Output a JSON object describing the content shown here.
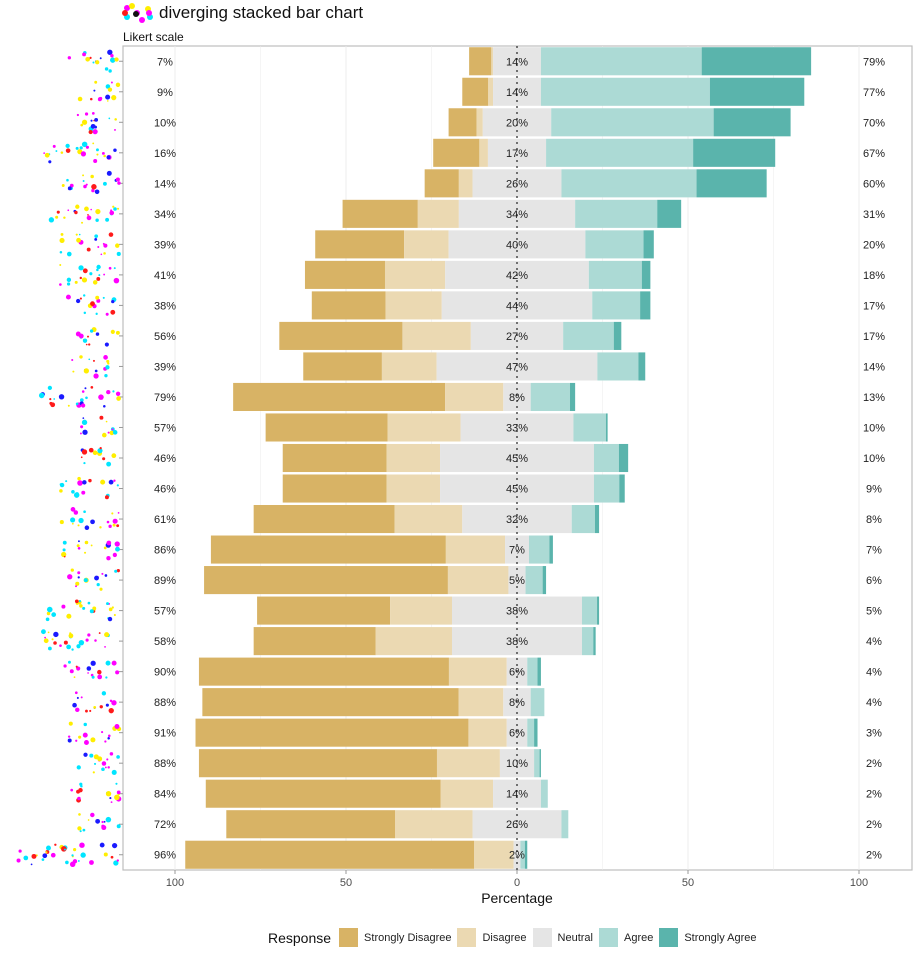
{
  "header": {
    "title": "diverging stacked bar chart",
    "subtitle": "Likert scale"
  },
  "chart_data": {
    "type": "bar",
    "orientation": "horizontal",
    "stacked": true,
    "diverging": true,
    "title": "diverging stacked bar chart",
    "subtitle": "Likert scale",
    "xlabel": "Percentage",
    "ylabel": "",
    "xlim": [
      -115,
      115
    ],
    "xticks": [
      -100,
      -50,
      0,
      50,
      100
    ],
    "xtick_labels": [
      "100",
      "50",
      "0",
      "50",
      "100"
    ],
    "grid": true,
    "legend": {
      "title": "Response",
      "placement": "bottom",
      "entries": [
        "Strongly Disagree",
        "Disagree",
        "Neutral",
        "Agree",
        "Strongly Agree"
      ]
    },
    "colors": {
      "Strongly Disagree": "#d8b365",
      "Disagree": "#ebd9b2",
      "Neutral": "#e5e5e5",
      "Agree": "#acdad5",
      "Strongly Agree": "#5ab4ac"
    },
    "categories_note": "Item labels rendered as illegible dot glyphs",
    "series_order": [
      "Strongly Disagree",
      "Disagree",
      "Neutral",
      "Agree",
      "Strongly Agree"
    ],
    "rows": [
      {
        "values": [
          6.5,
          0.5,
          14,
          47,
          32
        ],
        "left_label": "7%",
        "neutral_label": "14%",
        "right_label": "79%"
      },
      {
        "values": [
          7.6,
          1.4,
          14,
          49.4,
          27.6
        ],
        "left_label": "9%",
        "neutral_label": "14%",
        "right_label": "77%"
      },
      {
        "values": [
          8.2,
          1.8,
          20,
          47.5,
          22.5
        ],
        "left_label": "10%",
        "neutral_label": "20%",
        "right_label": "70%"
      },
      {
        "values": [
          13.5,
          2.5,
          17,
          43,
          24
        ],
        "left_label": "16%",
        "neutral_label": "17%",
        "right_label": "67%"
      },
      {
        "values": [
          10,
          4,
          26,
          39.5,
          20.5
        ],
        "left_label": "14%",
        "neutral_label": "26%",
        "right_label": "60%"
      },
      {
        "values": [
          22,
          12,
          34,
          24,
          7
        ],
        "left_label": "34%",
        "neutral_label": "34%",
        "right_label": "31%"
      },
      {
        "values": [
          26,
          13,
          40,
          17,
          3
        ],
        "left_label": "39%",
        "neutral_label": "40%",
        "right_label": "20%"
      },
      {
        "values": [
          23.4,
          17.6,
          42,
          15.5,
          2.5
        ],
        "left_label": "41%",
        "neutral_label": "42%",
        "right_label": "18%"
      },
      {
        "values": [
          21.6,
          16.4,
          44,
          14,
          3
        ],
        "left_label": "38%",
        "neutral_label": "44%",
        "right_label": "17%"
      },
      {
        "values": [
          36,
          20,
          27,
          14.8,
          2.2
        ],
        "left_label": "56%",
        "neutral_label": "27%",
        "right_label": "17%"
      },
      {
        "values": [
          23,
          16,
          47,
          12,
          2
        ],
        "left_label": "39%",
        "neutral_label": "47%",
        "right_label": "14%"
      },
      {
        "values": [
          62,
          17,
          8,
          11.5,
          1.5
        ],
        "left_label": "79%",
        "neutral_label": "8%",
        "right_label": "13%"
      },
      {
        "values": [
          35.7,
          21.3,
          33,
          9.5,
          0.5
        ],
        "left_label": "57%",
        "neutral_label": "33%",
        "right_label": "10%"
      },
      {
        "values": [
          30.4,
          15.6,
          45,
          7.3,
          2.7
        ],
        "left_label": "46%",
        "neutral_label": "45%",
        "right_label": "10%"
      },
      {
        "values": [
          30.4,
          15.6,
          45,
          7.4,
          1.6
        ],
        "left_label": "46%",
        "neutral_label": "45%",
        "right_label": "9%"
      },
      {
        "values": [
          41.2,
          19.8,
          32,
          6.8,
          1.2
        ],
        "left_label": "61%",
        "neutral_label": "32%",
        "right_label": "8%"
      },
      {
        "values": [
          68.7,
          17.3,
          7,
          6,
          1
        ],
        "left_label": "86%",
        "neutral_label": "7%",
        "right_label": "7%"
      },
      {
        "values": [
          71.3,
          17.7,
          5,
          5,
          1
        ],
        "left_label": "89%",
        "neutral_label": "5%",
        "right_label": "6%"
      },
      {
        "values": [
          38.9,
          18.1,
          38,
          4.4,
          0.6
        ],
        "left_label": "57%",
        "neutral_label": "38%",
        "right_label": "5%"
      },
      {
        "values": [
          35.7,
          22.3,
          38,
          3.3,
          0.7
        ],
        "left_label": "58%",
        "neutral_label": "38%",
        "right_label": "4%"
      },
      {
        "values": [
          73.1,
          16.9,
          6,
          3,
          1
        ],
        "left_label": "90%",
        "neutral_label": "6%",
        "right_label": "4%"
      },
      {
        "values": [
          74.9,
          13.1,
          8,
          4,
          0
        ],
        "left_label": "88%",
        "neutral_label": "8%",
        "right_label": "4%"
      },
      {
        "values": [
          79.8,
          11.2,
          6,
          2,
          1
        ],
        "left_label": "91%",
        "neutral_label": "6%",
        "right_label": "3%"
      },
      {
        "values": [
          69.6,
          18.4,
          10,
          1.6,
          0.4
        ],
        "left_label": "88%",
        "neutral_label": "10%",
        "right_label": "2%"
      },
      {
        "values": [
          68.7,
          15.3,
          14,
          2,
          0
        ],
        "left_label": "84%",
        "neutral_label": "14%",
        "right_label": "2%"
      },
      {
        "values": [
          49.4,
          22.6,
          26,
          2,
          0
        ],
        "left_label": "72%",
        "neutral_label": "26%",
        "right_label": "2%"
      },
      {
        "values": [
          84.5,
          11.5,
          2,
          1.3,
          0.7
        ],
        "left_label": "96%",
        "neutral_label": "2%",
        "right_label": "2%"
      }
    ]
  }
}
